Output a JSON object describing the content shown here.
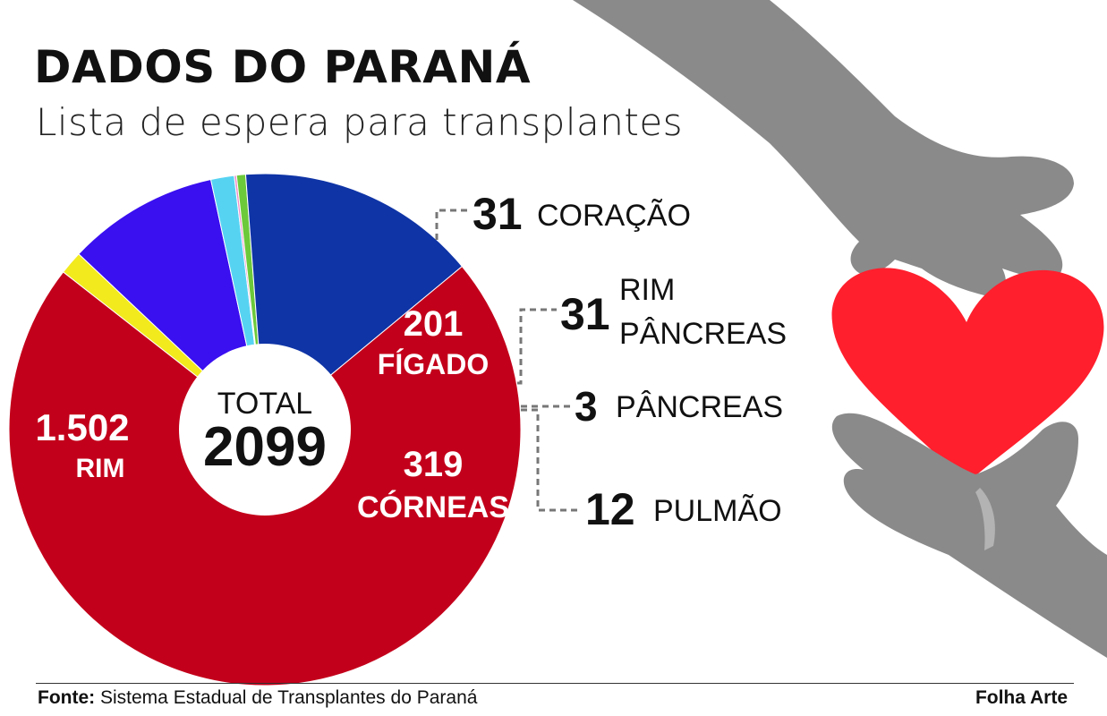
{
  "title": "DADOS DO PARANÁ",
  "subtitle": "Lista de espera para transplantes",
  "chart_data": {
    "type": "pie",
    "center_label": "TOTAL",
    "total": "2099",
    "slices": [
      {
        "name": "CORAÇÃO",
        "value": 31,
        "value_label": "31",
        "color": "#f2ea1d"
      },
      {
        "name": "FÍGADO",
        "value": 201,
        "value_label": "201",
        "color": "#3a0ff0"
      },
      {
        "name": "RIM PÂNCREAS",
        "value": 31,
        "value_label": "31",
        "color": "#57d3f2"
      },
      {
        "name": "PÂNCREAS",
        "value": 3,
        "value_label": "3",
        "color": "#f08ac7"
      },
      {
        "name": "PULMÃO",
        "value": 12,
        "value_label": "12",
        "color": "#6cc93a"
      },
      {
        "name": "CÓRNEAS",
        "value": 319,
        "value_label": "319",
        "color": "#0f34a6"
      },
      {
        "name": "RIM",
        "value": 1502,
        "value_label": "1.502",
        "color": "#c3001b"
      }
    ]
  },
  "labels": {
    "coracao": {
      "value": "31",
      "name": "CORAÇÃO"
    },
    "rim_pancreas": {
      "value": "31",
      "name1": "RIM",
      "name2": "PÂNCREAS"
    },
    "pancreas": {
      "value": "3",
      "name": "PÂNCREAS"
    },
    "pulmao": {
      "value": "12",
      "name": "PULMÃO"
    },
    "figado": {
      "value": "201",
      "name": "FÍGADO"
    },
    "corneas": {
      "value": "319",
      "name": "CÓRNEAS"
    },
    "rim": {
      "value": "1.502",
      "name": "RIM"
    }
  },
  "footer": {
    "source_label": "Fonte:",
    "source_text": "Sistema Estadual de Transplantes do Paraná",
    "credit": "Folha Arte"
  }
}
